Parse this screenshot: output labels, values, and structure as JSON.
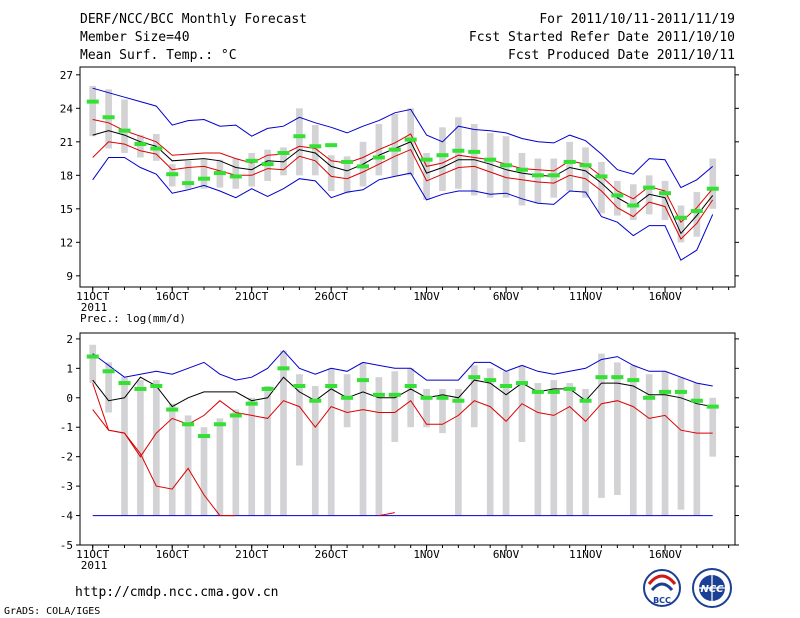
{
  "header": {
    "title": "DERF/NCC/BCC Monthly Forecast",
    "member": "Member Size=40",
    "variable": "Mean Surf. Temp.: °C",
    "period": "For 2011/10/11-2011/11/19",
    "refer": "Fcst Started Refer Date 2011/10/10",
    "produced": "Fcst Produced Date 2011/10/11"
  },
  "footer": {
    "url": "http://cmdp.ncc.cma.gov.cn",
    "grads": "GrADS: COLA/IGES",
    "logo_bcc": "BCC",
    "logo_ncc": "NCC"
  },
  "colors": {
    "ensemble_mean": "#000000",
    "spread_inner": "#dd0000",
    "spread_outer": "#0000cc",
    "member_box": "#d3d3d6",
    "climatology": "#33e033",
    "frame": "#000000"
  },
  "chart_data": [
    {
      "type": "line",
      "title": "Mean Surf. Temp.: °C",
      "xlabel": "",
      "ylabel": "°C",
      "ylim": [
        8,
        27.7
      ],
      "yticks": [
        9,
        12,
        15,
        18,
        21,
        24,
        27
      ],
      "xticks": [
        {
          "day": 1,
          "label": "11OCT",
          "sub": "2011"
        },
        {
          "day": 6,
          "label": "16OCT"
        },
        {
          "day": 11,
          "label": "21OCT"
        },
        {
          "day": 16,
          "label": "26OCT"
        },
        {
          "day": 22,
          "label": "1NOV"
        },
        {
          "day": 27,
          "label": "6NOV"
        },
        {
          "day": 32,
          "label": "11NOV"
        },
        {
          "day": 37,
          "label": "16NOV"
        }
      ],
      "x": [
        1,
        2,
        3,
        4,
        5,
        6,
        7,
        8,
        9,
        10,
        11,
        12,
        13,
        14,
        15,
        16,
        17,
        18,
        19,
        20,
        21,
        22,
        23,
        24,
        25,
        26,
        27,
        28,
        29,
        30,
        31,
        32,
        33,
        34,
        35,
        36,
        37,
        38,
        39,
        40
      ],
      "series": [
        {
          "name": "upper bound",
          "color": "#0000cc",
          "values": [
            25.8,
            25.4,
            25.0,
            24.6,
            24.2,
            22.5,
            22.9,
            23.0,
            22.4,
            22.5,
            21.5,
            22.2,
            22.4,
            23.2,
            22.7,
            22.3,
            21.8,
            22.4,
            22.9,
            23.6,
            23.9,
            21.6,
            21.0,
            22.4,
            22.1,
            22.0,
            21.8,
            21.3,
            21.0,
            20.9,
            21.6,
            21.1,
            19.9,
            18.5,
            18.1,
            19.5,
            19.4,
            16.9,
            17.6,
            18.8
          ]
        },
        {
          "name": "upper spread",
          "color": "#dd0000",
          "values": [
            23.0,
            22.7,
            22.0,
            21.5,
            21.0,
            19.8,
            19.9,
            20.0,
            20.0,
            19.5,
            19.1,
            19.8,
            19.9,
            20.6,
            20.4,
            19.3,
            19.1,
            19.6,
            20.3,
            20.9,
            21.7,
            18.8,
            19.1,
            19.8,
            19.6,
            19.4,
            19.0,
            18.6,
            18.5,
            18.4,
            19.3,
            19.0,
            17.9,
            16.6,
            15.9,
            17.0,
            16.6,
            13.8,
            15.1,
            16.8
          ]
        },
        {
          "name": "ensemble mean",
          "color": "#000000",
          "values": [
            21.6,
            22.0,
            21.6,
            21.0,
            20.6,
            19.3,
            19.4,
            19.5,
            19.3,
            18.7,
            18.5,
            19.3,
            19.2,
            20.3,
            20.0,
            18.8,
            18.4,
            19.0,
            19.8,
            20.4,
            21.0,
            18.2,
            18.7,
            19.4,
            19.4,
            19.0,
            18.5,
            18.2,
            18.0,
            17.9,
            18.7,
            18.4,
            17.3,
            16.0,
            15.2,
            16.3,
            16.0,
            12.8,
            14.4,
            16.2
          ]
        },
        {
          "name": "lower spread",
          "color": "#dd0000",
          "values": [
            19.6,
            21.0,
            20.8,
            20.2,
            19.9,
            18.5,
            18.7,
            18.8,
            18.4,
            18.0,
            18.0,
            18.6,
            18.5,
            19.7,
            19.3,
            17.9,
            17.7,
            18.3,
            19.0,
            19.7,
            20.3,
            17.5,
            18.1,
            18.7,
            18.8,
            18.3,
            17.8,
            17.6,
            17.4,
            17.3,
            18.0,
            17.7,
            16.6,
            15.1,
            14.3,
            15.6,
            15.2,
            12.3,
            13.7,
            15.8
          ]
        },
        {
          "name": "lower bound",
          "color": "#0000cc",
          "values": [
            17.6,
            19.6,
            19.6,
            18.7,
            18.1,
            16.4,
            16.7,
            17.1,
            16.6,
            16.0,
            16.8,
            16.1,
            16.8,
            17.7,
            17.5,
            16.0,
            16.5,
            16.7,
            17.6,
            17.9,
            18.2,
            15.8,
            16.3,
            16.6,
            16.6,
            16.3,
            16.4,
            15.9,
            15.5,
            15.4,
            16.6,
            16.5,
            14.3,
            13.8,
            12.6,
            13.5,
            13.5,
            10.4,
            11.3,
            14.5
          ]
        }
      ],
      "boxes": [
        {
          "low": 21.5,
          "high": 26.0
        },
        {
          "low": 20.4,
          "high": 25.7
        },
        {
          "low": 20.0,
          "high": 24.8
        },
        {
          "low": 19.6,
          "high": 21.6
        },
        {
          "low": 19.3,
          "high": 21.7
        },
        {
          "low": 17.0,
          "high": 19.0
        },
        {
          "low": 16.8,
          "high": 19.3
        },
        {
          "low": 16.8,
          "high": 19.4
        },
        {
          "low": 16.9,
          "high": 19.4
        },
        {
          "low": 16.8,
          "high": 19.5
        },
        {
          "low": 17.0,
          "high": 20.0
        },
        {
          "low": 17.5,
          "high": 20.3
        },
        {
          "low": 18.0,
          "high": 20.5
        },
        {
          "low": 18.0,
          "high": 24.0
        },
        {
          "low": 18.0,
          "high": 22.5
        },
        {
          "low": 16.6,
          "high": 19.8
        },
        {
          "low": 16.4,
          "high": 19.7
        },
        {
          "low": 17.0,
          "high": 21.0
        },
        {
          "low": 18.0,
          "high": 22.6
        },
        {
          "low": 17.9,
          "high": 23.5
        },
        {
          "low": 18.0,
          "high": 24.0
        },
        {
          "low": 15.8,
          "high": 20.0
        },
        {
          "low": 16.6,
          "high": 22.3
        },
        {
          "low": 16.8,
          "high": 23.2
        },
        {
          "low": 16.2,
          "high": 22.6
        },
        {
          "low": 16.0,
          "high": 21.8
        },
        {
          "low": 16.0,
          "high": 21.5
        },
        {
          "low": 15.3,
          "high": 20.0
        },
        {
          "low": 15.5,
          "high": 19.5
        },
        {
          "low": 16.0,
          "high": 19.5
        },
        {
          "low": 16.6,
          "high": 21.0
        },
        {
          "low": 16.0,
          "high": 20.5
        },
        {
          "low": 14.6,
          "high": 19.2
        },
        {
          "low": 14.4,
          "high": 17.5
        },
        {
          "low": 14.0,
          "high": 17.2
        },
        {
          "low": 14.5,
          "high": 18.0
        },
        {
          "low": 14.0,
          "high": 17.5
        },
        {
          "low": 12.0,
          "high": 15.3
        },
        {
          "low": 12.5,
          "high": 16.5
        },
        {
          "low": 15.0,
          "high": 19.5
        }
      ],
      "climatology": [
        24.6,
        23.2,
        22.0,
        20.8,
        20.4,
        18.1,
        17.3,
        17.7,
        18.2,
        17.9,
        19.3,
        19.0,
        20.0,
        21.5,
        20.6,
        20.7,
        19.2,
        18.8,
        19.6,
        20.3,
        21.2,
        19.4,
        19.8,
        20.2,
        20.1,
        19.4,
        18.9,
        18.5,
        18.0,
        18.0,
        19.2,
        18.9,
        17.9,
        16.2,
        15.3,
        16.9,
        16.4,
        14.2,
        14.8,
        16.8
      ]
    },
    {
      "type": "line",
      "title": "Prec.: log(mm/d)",
      "xlabel": "",
      "ylabel": "log(mm/d)",
      "ylim": [
        -5,
        2.2
      ],
      "yticks": [
        -5,
        -4,
        -3,
        -2,
        -1,
        0,
        1,
        2
      ],
      "xticks": [
        {
          "day": 1,
          "label": "11OCT",
          "sub": "2011"
        },
        {
          "day": 6,
          "label": "16OCT"
        },
        {
          "day": 11,
          "label": "21OCT"
        },
        {
          "day": 16,
          "label": "26OCT"
        },
        {
          "day": 22,
          "label": "1NOV"
        },
        {
          "day": 27,
          "label": "6NOV"
        },
        {
          "day": 32,
          "label": "11NOV"
        },
        {
          "day": 37,
          "label": "16NOV"
        }
      ],
      "x": [
        1,
        2,
        3,
        4,
        5,
        6,
        7,
        8,
        9,
        10,
        11,
        12,
        13,
        14,
        15,
        16,
        17,
        18,
        19,
        20,
        21,
        22,
        23,
        24,
        25,
        26,
        27,
        28,
        29,
        30,
        31,
        32,
        33,
        34,
        35,
        36,
        37,
        38,
        39,
        40
      ],
      "series": [
        {
          "name": "upper bound",
          "color": "#0000cc",
          "values": [
            1.5,
            1.1,
            0.7,
            0.8,
            0.9,
            0.8,
            1.0,
            1.2,
            0.8,
            0.6,
            0.7,
            1.0,
            1.6,
            1.0,
            0.8,
            1.0,
            0.9,
            1.2,
            1.1,
            1.0,
            1.0,
            0.6,
            0.6,
            0.6,
            1.2,
            1.2,
            0.9,
            1.1,
            0.9,
            0.8,
            0.9,
            1.0,
            1.3,
            1.4,
            1.1,
            0.9,
            0.9,
            0.7,
            0.5,
            0.4
          ]
        },
        {
          "name": "ensemble mean",
          "color": "#000000",
          "values": [
            0.6,
            -0.1,
            0.0,
            0.7,
            0.4,
            -0.3,
            0.0,
            0.2,
            0.2,
            0.2,
            -0.1,
            0.0,
            0.7,
            0.2,
            -0.1,
            0.3,
            0.0,
            0.2,
            0.0,
            0.0,
            0.3,
            0.0,
            0.1,
            0.0,
            0.6,
            0.5,
            0.1,
            0.5,
            0.2,
            0.3,
            0.3,
            -0.1,
            0.5,
            0.5,
            0.4,
            0.1,
            0.1,
            0.0,
            -0.2,
            -0.3
          ]
        },
        {
          "name": "lower spread",
          "color": "#dd0000",
          "values": [
            -0.4,
            -1.1,
            -1.2,
            -2.0,
            -1.2,
            -0.7,
            -0.9,
            -0.6,
            -0.1,
            -0.5,
            -0.6,
            -0.7,
            -0.1,
            -0.3,
            -1.0,
            -0.3,
            -0.5,
            -0.4,
            -0.5,
            -0.5,
            -0.1,
            -0.9,
            -0.9,
            -0.6,
            -0.1,
            -0.3,
            -0.8,
            -0.2,
            -0.5,
            -0.6,
            -0.3,
            -0.8,
            -0.2,
            -0.1,
            -0.3,
            -0.7,
            -0.6,
            -1.1,
            -1.2,
            -1.2
          ]
        },
        {
          "name": "lower bound",
          "color": "#0000cc",
          "values": [
            -4,
            -4,
            -4,
            -4,
            -4,
            -4,
            -4,
            -4,
            -4,
            -4,
            -4,
            -4,
            -4,
            -4,
            -4,
            -4,
            -4,
            -4,
            -4,
            -4,
            -4,
            -4,
            -4,
            -4,
            -4,
            -4,
            -4,
            -4,
            -4,
            -4,
            -4,
            -4,
            -4,
            -4,
            -4,
            -4,
            -4,
            -4,
            -4,
            -4
          ]
        }
      ],
      "extra_red_line": {
        "x": [
          1,
          2,
          3,
          4,
          5,
          6,
          7,
          8,
          9,
          10
        ],
        "values": [
          0.5,
          -1.1,
          -1.2,
          -1.9,
          -3.0,
          -3.1,
          -2.4,
          -3.3,
          -4.0,
          -4.0
        ]
      },
      "boxes": [
        {
          "low": 0.5,
          "high": 1.8
        },
        {
          "low": -0.5,
          "high": 1.2
        },
        {
          "low": -4.0,
          "high": 0.7
        },
        {
          "low": -4.0,
          "high": 0.6
        },
        {
          "low": -4.0,
          "high": 0.6
        },
        {
          "low": -4.0,
          "high": -0.2
        },
        {
          "low": -4.0,
          "high": -0.6
        },
        {
          "low": -4.0,
          "high": -1.0
        },
        {
          "low": -4.0,
          "high": -0.7
        },
        {
          "low": -4.0,
          "high": -0.4
        },
        {
          "low": -4.0,
          "high": 0.0
        },
        {
          "low": -4.0,
          "high": 0.4
        },
        {
          "low": -4.0,
          "high": 1.6
        },
        {
          "low": -2.3,
          "high": 0.8
        },
        {
          "low": -4.0,
          "high": 0.4
        },
        {
          "low": -4.0,
          "high": 1.0
        },
        {
          "low": -1.0,
          "high": 0.8
        },
        {
          "low": -4.0,
          "high": 1.2
        },
        {
          "low": -4.0,
          "high": 0.7
        },
        {
          "low": -1.5,
          "high": 0.9
        },
        {
          "low": -1.0,
          "high": 1.0
        },
        {
          "low": -1.0,
          "high": 0.3
        },
        {
          "low": -1.2,
          "high": 0.3
        },
        {
          "low": -4.0,
          "high": 0.3
        },
        {
          "low": -1.0,
          "high": 1.1
        },
        {
          "low": -4.0,
          "high": 1.0
        },
        {
          "low": -4.0,
          "high": 0.9
        },
        {
          "low": -1.5,
          "high": 1.1
        },
        {
          "low": -4.0,
          "high": 0.5
        },
        {
          "low": -4.0,
          "high": 0.6
        },
        {
          "low": -4.0,
          "high": 0.5
        },
        {
          "low": -4.0,
          "high": 0.3
        },
        {
          "low": -3.4,
          "high": 1.5
        },
        {
          "low": -3.3,
          "high": 1.2
        },
        {
          "low": -4.0,
          "high": 1.1
        },
        {
          "low": -4.0,
          "high": 0.8
        },
        {
          "low": -4.0,
          "high": 0.9
        },
        {
          "low": -3.8,
          "high": 0.7
        },
        {
          "low": -4.0,
          "high": 0.5
        },
        {
          "low": -2.0,
          "high": 0.0
        }
      ],
      "climatology": [
        1.4,
        0.9,
        0.5,
        0.3,
        0.4,
        -0.4,
        -0.9,
        -1.3,
        -0.9,
        -0.6,
        -0.2,
        0.3,
        1.0,
        0.4,
        -0.1,
        0.4,
        0.0,
        0.6,
        0.1,
        0.1,
        0.4,
        0.0,
        0.0,
        -0.1,
        0.7,
        0.6,
        0.4,
        0.5,
        0.2,
        0.2,
        0.3,
        -0.1,
        0.7,
        0.7,
        0.6,
        0.0,
        0.2,
        0.2,
        -0.1,
        -0.3
      ],
      "small_red_marks": [
        {
          "x": 19,
          "y": -4.0
        },
        {
          "x": 20,
          "y": -3.9
        }
      ]
    }
  ]
}
